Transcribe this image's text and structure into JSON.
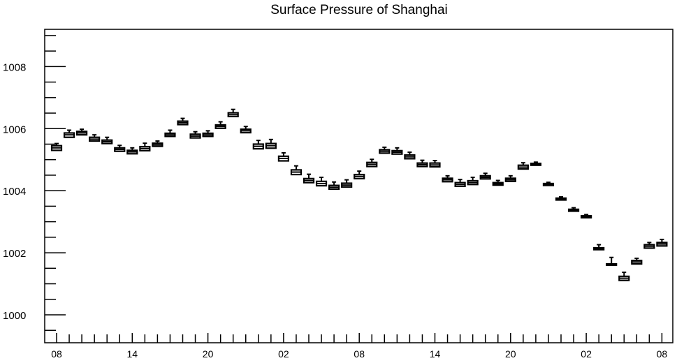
{
  "chart_data": {
    "type": "box",
    "title": "Surface Pressure of Shanghai",
    "xlabel": "",
    "ylabel": "",
    "ylim": [
      999.1,
      1009.2
    ],
    "y_ticks": [
      1000,
      1002,
      1004,
      1006,
      1008
    ],
    "y_tick_labels": [
      "1000",
      "1002",
      "1004",
      "1006",
      "1008"
    ],
    "x_tick_labels": [
      "08",
      "14",
      "20",
      "02",
      "08",
      "14",
      "20",
      "02",
      "08"
    ],
    "x_tick_steps": [
      0,
      6,
      12,
      18,
      24,
      30,
      36,
      42,
      48
    ],
    "grid": false,
    "color": "#000000",
    "boxes": [
      {
        "step": 0,
        "q1": 1005.3,
        "median": 1005.38,
        "q3": 1005.45,
        "whisker_high": 1005.52
      },
      {
        "step": 1,
        "q1": 1005.72,
        "median": 1005.8,
        "q3": 1005.86,
        "whisker_high": 1005.95
      },
      {
        "step": 2,
        "q1": 1005.8,
        "median": 1005.86,
        "q3": 1005.91,
        "whisker_high": 1005.98
      },
      {
        "step": 3,
        "q1": 1005.6,
        "median": 1005.66,
        "q3": 1005.72,
        "whisker_high": 1005.8
      },
      {
        "step": 4,
        "q1": 1005.52,
        "median": 1005.58,
        "q3": 1005.63,
        "whisker_high": 1005.72
      },
      {
        "step": 5,
        "q1": 1005.27,
        "median": 1005.33,
        "q3": 1005.38,
        "whisker_high": 1005.46
      },
      {
        "step": 6,
        "q1": 1005.19,
        "median": 1005.25,
        "q3": 1005.3,
        "whisker_high": 1005.38
      },
      {
        "step": 7,
        "q1": 1005.29,
        "median": 1005.36,
        "q3": 1005.42,
        "whisker_high": 1005.53
      },
      {
        "step": 8,
        "q1": 1005.43,
        "median": 1005.48,
        "q3": 1005.53,
        "whisker_high": 1005.6
      },
      {
        "step": 9,
        "q1": 1005.75,
        "median": 1005.8,
        "q3": 1005.85,
        "whisker_high": 1005.95
      },
      {
        "step": 10,
        "q1": 1006.13,
        "median": 1006.19,
        "q3": 1006.24,
        "whisker_high": 1006.33
      },
      {
        "step": 11,
        "q1": 1005.7,
        "median": 1005.76,
        "q3": 1005.82,
        "whisker_high": 1005.9
      },
      {
        "step": 12,
        "q1": 1005.75,
        "median": 1005.8,
        "q3": 1005.85,
        "whisker_high": 1005.93
      },
      {
        "step": 13,
        "q1": 1006.01,
        "median": 1006.07,
        "q3": 1006.12,
        "whisker_high": 1006.22
      },
      {
        "step": 14,
        "q1": 1006.39,
        "median": 1006.45,
        "q3": 1006.51,
        "whisker_high": 1006.62
      },
      {
        "step": 15,
        "q1": 1005.87,
        "median": 1005.93,
        "q3": 1005.98,
        "whisker_high": 1006.07
      },
      {
        "step": 16,
        "q1": 1005.35,
        "median": 1005.43,
        "q3": 1005.5,
        "whisker_high": 1005.62
      },
      {
        "step": 17,
        "q1": 1005.37,
        "median": 1005.45,
        "q3": 1005.52,
        "whisker_high": 1005.65
      },
      {
        "step": 18,
        "q1": 1004.96,
        "median": 1005.04,
        "q3": 1005.11,
        "whisker_high": 1005.22
      },
      {
        "step": 19,
        "q1": 1004.52,
        "median": 1004.6,
        "q3": 1004.67,
        "whisker_high": 1004.8
      },
      {
        "step": 20,
        "q1": 1004.26,
        "median": 1004.33,
        "q3": 1004.39,
        "whisker_high": 1004.53
      },
      {
        "step": 21,
        "q1": 1004.16,
        "median": 1004.23,
        "q3": 1004.3,
        "whisker_high": 1004.43
      },
      {
        "step": 22,
        "q1": 1004.05,
        "median": 1004.11,
        "q3": 1004.17,
        "whisker_high": 1004.28
      },
      {
        "step": 23,
        "q1": 1004.12,
        "median": 1004.18,
        "q3": 1004.24,
        "whisker_high": 1004.35
      },
      {
        "step": 24,
        "q1": 1004.39,
        "median": 1004.46,
        "q3": 1004.52,
        "whisker_high": 1004.63
      },
      {
        "step": 25,
        "q1": 1004.78,
        "median": 1004.85,
        "q3": 1004.91,
        "whisker_high": 1005.01
      },
      {
        "step": 26,
        "q1": 1005.21,
        "median": 1005.27,
        "q3": 1005.32,
        "whisker_high": 1005.4
      },
      {
        "step": 27,
        "q1": 1005.18,
        "median": 1005.24,
        "q3": 1005.29,
        "whisker_high": 1005.38
      },
      {
        "step": 28,
        "q1": 1005.03,
        "median": 1005.09,
        "q3": 1005.15,
        "whisker_high": 1005.24
      },
      {
        "step": 29,
        "q1": 1004.78,
        "median": 1004.84,
        "q3": 1004.89,
        "whisker_high": 1004.98
      },
      {
        "step": 30,
        "q1": 1004.77,
        "median": 1004.83,
        "q3": 1004.89,
        "whisker_high": 1004.97
      },
      {
        "step": 31,
        "q1": 1004.29,
        "median": 1004.35,
        "q3": 1004.4,
        "whisker_high": 1004.48
      },
      {
        "step": 32,
        "q1": 1004.14,
        "median": 1004.2,
        "q3": 1004.26,
        "whisker_high": 1004.36
      },
      {
        "step": 33,
        "q1": 1004.2,
        "median": 1004.26,
        "q3": 1004.32,
        "whisker_high": 1004.43
      },
      {
        "step": 34,
        "q1": 1004.38,
        "median": 1004.43,
        "q3": 1004.48,
        "whisker_high": 1004.56
      },
      {
        "step": 35,
        "q1": 1004.18,
        "median": 1004.22,
        "q3": 1004.26,
        "whisker_high": 1004.33
      },
      {
        "step": 36,
        "q1": 1004.3,
        "median": 1004.35,
        "q3": 1004.4,
        "whisker_high": 1004.48
      },
      {
        "step": 37,
        "q1": 1004.7,
        "median": 1004.76,
        "q3": 1004.82,
        "whisker_high": 1004.9
      },
      {
        "step": 38,
        "q1": 1004.82,
        "median": 1004.85,
        "q3": 1004.88,
        "whisker_high": 1004.92
      },
      {
        "step": 39,
        "q1": 1004.17,
        "median": 1004.2,
        "q3": 1004.23,
        "whisker_high": 1004.27
      },
      {
        "step": 40,
        "q1": 1003.7,
        "median": 1003.73,
        "q3": 1003.76,
        "whisker_high": 1003.8
      },
      {
        "step": 41,
        "q1": 1003.34,
        "median": 1003.37,
        "q3": 1003.4,
        "whisker_high": 1003.45
      },
      {
        "step": 42,
        "q1": 1003.13,
        "median": 1003.16,
        "q3": 1003.19,
        "whisker_high": 1003.23
      },
      {
        "step": 43,
        "q1": 1002.1,
        "median": 1002.13,
        "q3": 1002.16,
        "whisker_high": 1002.26
      },
      {
        "step": 44,
        "q1": 1001.6,
        "median": 1001.62,
        "q3": 1001.64,
        "whisker_high": 1001.85
      },
      {
        "step": 45,
        "q1": 1001.11,
        "median": 1001.18,
        "q3": 1001.24,
        "whisker_high": 1001.37
      },
      {
        "step": 46,
        "q1": 1001.64,
        "median": 1001.7,
        "q3": 1001.75,
        "whisker_high": 1001.82
      },
      {
        "step": 47,
        "q1": 1002.15,
        "median": 1002.21,
        "q3": 1002.26,
        "whisker_high": 1002.33
      },
      {
        "step": 48,
        "q1": 1002.22,
        "median": 1002.28,
        "q3": 1002.33,
        "whisker_high": 1002.43
      }
    ]
  }
}
